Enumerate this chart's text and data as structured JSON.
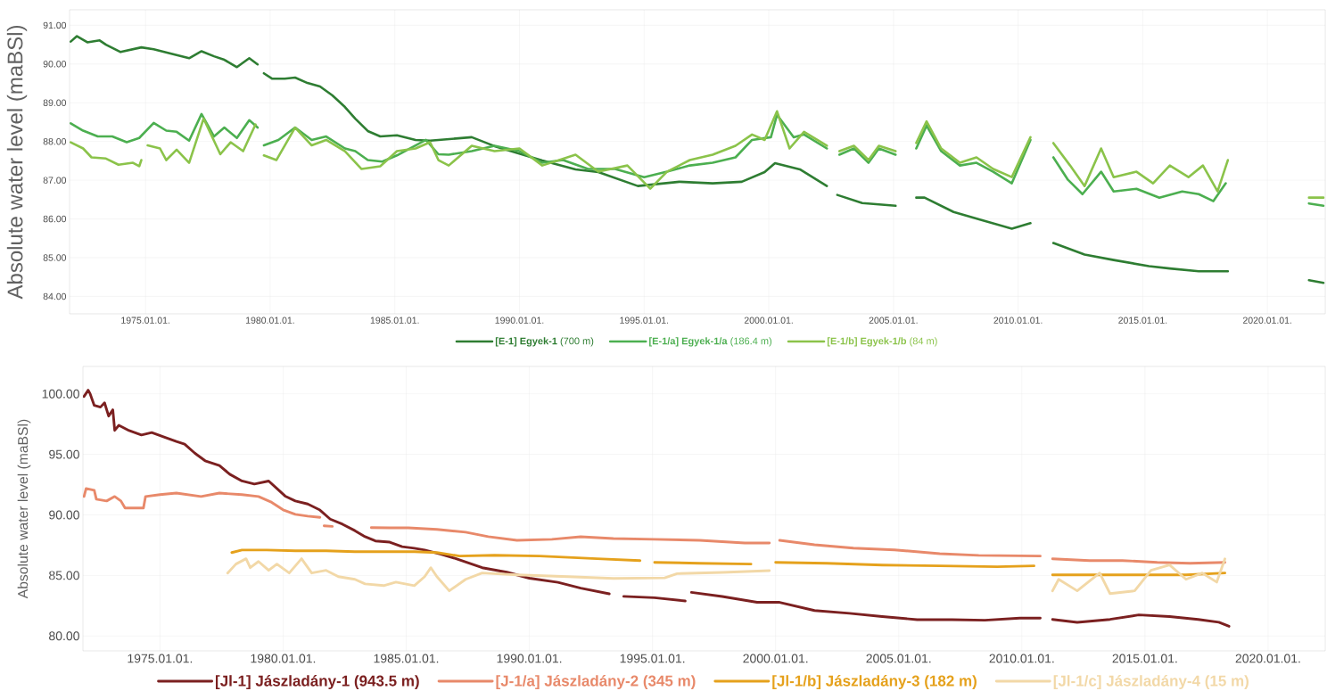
{
  "chart_data": [
    {
      "type": "line",
      "ylabel": "Absolute water level (maBSl)",
      "xlim": [
        "1971-12-15",
        "2022-04-28"
      ],
      "ylim": [
        83.55,
        91.4
      ],
      "xticks": [
        {
          "value": "1975-01-01",
          "label": "1975.01.01."
        },
        {
          "value": "1980-01-01",
          "label": "1980.01.01."
        },
        {
          "value": "1985-01-01",
          "label": "1985.01.01."
        },
        {
          "value": "1990-01-01",
          "label": "1990.01.01."
        },
        {
          "value": "1995-01-01",
          "label": "1995.01.01."
        },
        {
          "value": "2000-01-01",
          "label": "2000.01.01."
        },
        {
          "value": "2005-01-01",
          "label": "2005.01.01."
        },
        {
          "value": "2010-01-01",
          "label": "2010.01.01."
        },
        {
          "value": "2015-01-01",
          "label": "2015.01.01."
        },
        {
          "value": "2020-01-01",
          "label": "2020.01.01."
        }
      ],
      "yticks": [
        {
          "value": 84,
          "label": "84.00"
        },
        {
          "value": 85,
          "label": "85.00"
        },
        {
          "value": 86,
          "label": "86.00"
        },
        {
          "value": 87,
          "label": "87.00"
        },
        {
          "value": 88,
          "label": "88.00"
        },
        {
          "value": 89,
          "label": "89.00"
        },
        {
          "value": 90,
          "label": "90.00"
        },
        {
          "value": 91,
          "label": "91.00"
        }
      ],
      "grid": true,
      "legend": "bottom",
      "series": [
        {
          "name": "**[E-1] Egyek-1** (700 m)",
          "color": "#2e7d32",
          "x": [
            "1972-01",
            "1972-04",
            "1972-09",
            "1973-03",
            "1973-06",
            "1974-01",
            "1974-11",
            "1975-05",
            "1976-01",
            "1976-10",
            "1977-04",
            "1977-10",
            "1978-03",
            "1978-09",
            "1979-03",
            "1979-07",
            "1979-09",
            "1979-10",
            "1980-02",
            "1980-08",
            "1981-01",
            "1981-07",
            "1982-01",
            "1982-07",
            "1983-01",
            "1983-06",
            "1983-12",
            "1984-06",
            "1985-02",
            "1985-11",
            "1986-06",
            "1988-02",
            "1989-01",
            "1990-12",
            "1992-04",
            "1993-03",
            "1994-10",
            "1996-06",
            "1997-10",
            "1998-12",
            "1999-11",
            "2000-04",
            "2001-04",
            "2002-05",
            "2002-07",
            "2002-10",
            "2003-10",
            "2005-02",
            "2005-06",
            "2005-12",
            "2006-04",
            "2007-06",
            "2008-07",
            "2009-10",
            "2010-07",
            "2011-01",
            "2011-06",
            "2012-09",
            "2013-11",
            "2015-04",
            "2016-02",
            "2017-04",
            "2018-06",
            "2020-01",
            "2021-09",
            "2022-04"
          ],
          "values": [
            90.58,
            90.72,
            90.56,
            90.61,
            90.5,
            90.31,
            90.43,
            90.38,
            90.27,
            90.15,
            90.33,
            90.2,
            90.11,
            89.92,
            90.15,
            89.99,
            null,
            89.76,
            89.62,
            89.62,
            89.65,
            89.51,
            89.42,
            89.19,
            88.89,
            88.59,
            88.27,
            88.13,
            88.16,
            88.04,
            88.02,
            88.11,
            87.88,
            87.51,
            87.28,
            87.21,
            86.85,
            86.96,
            86.92,
            86.96,
            87.21,
            87.44,
            87.28,
            86.85,
            null,
            86.62,
            86.41,
            86.34,
            null,
            86.55,
            86.55,
            86.18,
            85.98,
            85.75,
            85.89,
            null,
            85.38,
            85.08,
            84.94,
            84.78,
            84.72,
            84.65,
            84.65,
            null,
            84.42,
            84.35
          ]
        },
        {
          "name": "**[E-1/a] Egyek-1/a** (186.4 m)",
          "color": "#4caf50",
          "x": [
            "1972-01",
            "1972-07",
            "1973-02",
            "1973-09",
            "1974-04",
            "1974-10",
            "1975-05",
            "1975-11",
            "1976-04",
            "1976-10",
            "1977-04",
            "1977-10",
            "1978-03",
            "1978-09",
            "1979-03",
            "1979-07",
            "1979-09",
            "1979-10",
            "1980-05",
            "1981-01",
            "1981-09",
            "1982-04",
            "1983-01",
            "1983-06",
            "1983-12",
            "1984-07",
            "1985-02",
            "1985-11",
            "1986-04",
            "1986-10",
            "1987-03",
            "1988-02",
            "1989-01",
            "1990-01",
            "1990-12",
            "1991-10",
            "1992-10",
            "1993-11",
            "1995-01",
            "1995-12",
            "1996-11",
            "1997-10",
            "1998-09",
            "1999-05",
            "2000-02",
            "2000-05",
            "2001-01",
            "2001-06",
            "2002-05",
            "2002-08",
            "2002-11",
            "2003-06",
            "2004-01",
            "2004-06",
            "2005-02",
            "2005-06",
            "2005-12",
            "2006-05",
            "2006-12",
            "2007-09",
            "2008-05",
            "2009-01",
            "2009-10",
            "2010-07",
            "2011-01",
            "2011-06",
            "2012-01",
            "2012-08",
            "2013-05",
            "2013-11",
            "2014-10",
            "2015-09",
            "2016-08",
            "2017-04",
            "2017-11",
            "2018-05",
            "2020-01",
            "2021-09",
            "2022-04"
          ],
          "values": [
            88.47,
            88.28,
            88.13,
            88.13,
            87.98,
            88.09,
            88.48,
            88.28,
            88.25,
            88.02,
            88.71,
            88.13,
            88.36,
            88.09,
            88.55,
            88.36,
            null,
            87.9,
            88.04,
            88.36,
            88.04,
            88.13,
            87.82,
            87.75,
            87.52,
            87.48,
            87.64,
            87.9,
            88.04,
            87.67,
            87.66,
            87.75,
            87.89,
            87.75,
            87.45,
            87.52,
            87.29,
            87.29,
            87.08,
            87.22,
            87.38,
            87.45,
            87.59,
            88.04,
            88.11,
            88.69,
            88.11,
            88.18,
            87.82,
            null,
            87.66,
            87.82,
            87.45,
            87.82,
            87.66,
            null,
            87.82,
            88.41,
            87.75,
            87.38,
            87.45,
            87.22,
            86.92,
            88.04,
            null,
            87.59,
            87.01,
            86.64,
            87.22,
            86.71,
            86.78,
            86.55,
            86.71,
            86.64,
            86.46,
            86.92,
            null,
            86.4,
            86.34
          ]
        },
        {
          "name": "**[E-1/b] Egyek-1/b** (84 m)",
          "color": "#8bc34a",
          "x": [
            "1972-01",
            "1972-07",
            "1972-11",
            "1973-06",
            "1973-12",
            "1974-07",
            "1974-10",
            "1974-11",
            "1975-01",
            "1975-02",
            "1975-08",
            "1975-11",
            "1976-04",
            "1976-10",
            "1977-05",
            "1978-01",
            "1978-06",
            "1978-12",
            "1979-06",
            "1979-09",
            "1979-10",
            "1980-04",
            "1981-01",
            "1981-09",
            "1982-04",
            "1983-01",
            "1983-09",
            "1984-06",
            "1985-02",
            "1985-11",
            "1986-06",
            "1986-10",
            "1987-03",
            "1988-02",
            "1989-01",
            "1990-01",
            "1990-12",
            "1992-04",
            "1993-03",
            "1994-05",
            "1995-04",
            "1995-12",
            "1996-11",
            "1997-10",
            "1998-09",
            "1999-05",
            "1999-11",
            "2000-05",
            "2000-11",
            "2001-06",
            "2002-05",
            "2002-08",
            "2002-11",
            "2003-06",
            "2004-01",
            "2004-06",
            "2005-02",
            "2005-06",
            "2005-12",
            "2006-05",
            "2006-12",
            "2007-09",
            "2008-05",
            "2009-01",
            "2009-10",
            "2010-07",
            "2011-01",
            "2011-06",
            "2012-02",
            "2012-09",
            "2013-05",
            "2013-11",
            "2014-10",
            "2015-06",
            "2016-02",
            "2016-11",
            "2017-06",
            "2018-01",
            "2018-06",
            "2020-01",
            "2021-09",
            "2022-04"
          ],
          "values": [
            87.98,
            87.82,
            87.59,
            87.56,
            87.4,
            87.45,
            87.36,
            87.52,
            null,
            87.9,
            87.82,
            87.52,
            87.79,
            87.45,
            88.59,
            87.67,
            87.98,
            87.75,
            88.44,
            null,
            87.64,
            87.52,
            88.36,
            87.9,
            88.04,
            87.75,
            87.29,
            87.36,
            87.75,
            87.82,
            87.98,
            87.52,
            87.38,
            87.89,
            87.75,
            87.82,
            87.38,
            87.66,
            87.22,
            87.38,
            86.78,
            87.22,
            87.52,
            87.66,
            87.89,
            88.18,
            88.04,
            88.78,
            87.82,
            88.25,
            87.89,
            null,
            87.75,
            87.89,
            87.52,
            87.89,
            87.75,
            null,
            87.96,
            88.52,
            87.82,
            87.45,
            87.59,
            87.29,
            87.08,
            88.11,
            null,
            87.96,
            87.38,
            86.85,
            87.82,
            87.08,
            87.22,
            86.92,
            87.38,
            87.08,
            87.38,
            86.71,
            87.52,
            null,
            86.55,
            86.55
          ]
        }
      ]
    },
    {
      "type": "line",
      "ylabel": "Absolute water level (maBSl)",
      "xlim": [
        "1971-11-15",
        "2022-04-28"
      ],
      "ylim": [
        78.77,
        102.26
      ],
      "xticks": [
        {
          "value": "1975-01-01",
          "label": "1975.01.01."
        },
        {
          "value": "1980-01-01",
          "label": "1980.01.01."
        },
        {
          "value": "1985-01-01",
          "label": "1985.01.01."
        },
        {
          "value": "1990-01-01",
          "label": "1990.01.01."
        },
        {
          "value": "1995-01-01",
          "label": "1995.01.01."
        },
        {
          "value": "2000-01-01",
          "label": "2000.01.01."
        },
        {
          "value": "2005-01-01",
          "label": "2005.01.01."
        },
        {
          "value": "2010-01-01",
          "label": "2010.01.01."
        },
        {
          "value": "2015-01-01",
          "label": "2015.01.01."
        },
        {
          "value": "2020-01-01",
          "label": "2020.01.01."
        }
      ],
      "yticks": [
        {
          "value": 80,
          "label": "80.00"
        },
        {
          "value": 85,
          "label": "85.00"
        },
        {
          "value": 90,
          "label": "90.00"
        },
        {
          "value": 95,
          "label": "95.00"
        },
        {
          "value": 100,
          "label": "100.00"
        }
      ],
      "grid": true,
      "legend": "bottom",
      "series": [
        {
          "name": "[Jl-1] Jászladány-1 (943.5 m)",
          "color": "#7b2020",
          "x": [
            "1971-12",
            "1972-02",
            "1972-03",
            "1972-05",
            "1972-08",
            "1972-10",
            "1972-12",
            "1973-02",
            "1973-03",
            "1973-05",
            "1973-10",
            "1974-04",
            "1974-09",
            "1975-03",
            "1975-09",
            "1976-01",
            "1976-06",
            "1976-11",
            "1977-06",
            "1977-11",
            "1978-05",
            "1978-11",
            "1979-06",
            "1979-10",
            "1980-02",
            "1980-07",
            "1981-01",
            "1981-07",
            "1981-12",
            "1982-06",
            "1982-12",
            "1983-05",
            "1983-10",
            "1984-05",
            "1984-11",
            "1985-05",
            "1985-10",
            "1986-06",
            "1987-01",
            "1988-02",
            "1989-02",
            "1990-01",
            "1991-03",
            "1992-02",
            "1993-04",
            "1993-07",
            "1993-11",
            "1995-02",
            "1996-05",
            "1996-06",
            "1996-08",
            "1997-11",
            "1999-04",
            "2000-03",
            "2001-08",
            "2003-01",
            "2004-05",
            "2005-10",
            "2007-03",
            "2008-07",
            "2009-12",
            "2010-10",
            "2011-01",
            "2011-04",
            "2012-04",
            "2013-08",
            "2014-10",
            "2016-01",
            "2017-03",
            "2018-01",
            "2018-06"
          ],
          "values": [
            99.78,
            100.3,
            100.0,
            99.04,
            98.9,
            99.26,
            98.16,
            98.68,
            96.98,
            97.4,
            96.96,
            96.6,
            96.8,
            96.44,
            96.07,
            95.85,
            95.1,
            94.47,
            94.08,
            93.36,
            92.8,
            92.55,
            92.8,
            92.18,
            91.55,
            91.15,
            90.9,
            90.4,
            89.65,
            89.23,
            88.7,
            88.2,
            87.85,
            87.75,
            87.38,
            87.25,
            87.1,
            86.75,
            86.4,
            85.64,
            85.27,
            84.77,
            84.43,
            83.95,
            83.48,
            null,
            83.27,
            83.16,
            82.89,
            null,
            83.6,
            83.26,
            82.78,
            82.78,
            82.1,
            81.87,
            81.6,
            81.35,
            81.35,
            81.3,
            81.48,
            81.48,
            null,
            81.37,
            81.13,
            81.37,
            81.74,
            81.6,
            81.37,
            81.14,
            80.8
          ]
        },
        {
          "name": "[J-1/a] Jászladány-2 (345 m)",
          "color": "#e8896a",
          "x": [
            "1971-12",
            "1972-01",
            "1972-05",
            "1972-06",
            "1972-11",
            "1973-03",
            "1973-06",
            "1973-08",
            "1974-01",
            "1974-05",
            "1974-06",
            "1975-01",
            "1975-09",
            "1976-09",
            "1977-06",
            "1978-05",
            "1979-01",
            "1979-07",
            "1980-01",
            "1980-07",
            "1981-01",
            "1981-07",
            "1981-08",
            "1981-09",
            "1982-01",
            "1982-06",
            "1983-08",
            "1984-05",
            "1985-02",
            "1985-10",
            "1986-04",
            "1987-06",
            "1988-05",
            "1989-07",
            "1990-12",
            "1992-02",
            "1993-06",
            "1995-02",
            "1996-12",
            "1998-10",
            "1999-10",
            "2000-01",
            "2000-03",
            "2001-08",
            "2003-03",
            "2004-11",
            "2006-09",
            "2008-04",
            "2010-10",
            "2011-01",
            "2011-04",
            "2012-10",
            "2014-02",
            "2015-07",
            "2016-11",
            "2018-04"
          ],
          "values": [
            91.52,
            92.18,
            92.03,
            91.3,
            91.15,
            91.52,
            91.15,
            90.57,
            90.57,
            90.57,
            91.52,
            91.67,
            91.8,
            91.52,
            91.8,
            91.67,
            91.52,
            91.08,
            90.42,
            90.05,
            89.9,
            89.8,
            null,
            89.1,
            89.05,
            null,
            88.95,
            88.93,
            88.93,
            88.86,
            88.8,
            88.57,
            88.2,
            87.9,
            87.98,
            88.2,
            88.05,
            87.98,
            87.9,
            87.68,
            87.68,
            null,
            87.9,
            87.53,
            87.26,
            87.11,
            86.8,
            86.66,
            86.6,
            null,
            86.37,
            86.23,
            86.23,
            86.08,
            86.01,
            86.08
          ]
        },
        {
          "name": "[Jl-1/b] Jászladány-3 (182 m)",
          "color": "#e5a11c",
          "x": [
            "1977-12",
            "1978-05",
            "1979-05",
            "1980-07",
            "1981-10",
            "1982-12",
            "1984-02",
            "1985-05",
            "1986-04",
            "1987-03",
            "1988-08",
            "1990-06",
            "1992-10",
            "1994-07",
            "1994-10",
            "1995-02",
            "1996-12",
            "1999-01",
            "1999-08",
            "2000-01",
            "2002-02",
            "2004-05",
            "2006-09",
            "2009-01",
            "2010-07",
            "2011-01",
            "2011-04",
            "2012-10",
            "2014-10",
            "2016-09",
            "2018-04"
          ],
          "values": [
            86.89,
            87.1,
            87.1,
            87.04,
            87.04,
            86.96,
            86.96,
            86.96,
            86.89,
            86.6,
            86.67,
            86.6,
            86.38,
            86.23,
            null,
            86.08,
            86.01,
            85.94,
            null,
            86.08,
            86.01,
            85.86,
            85.79,
            85.72,
            85.79,
            null,
            85.05,
            85.05,
            85.05,
            85.05,
            85.2
          ]
        },
        {
          "name": "[Jl-1/c] Jászladány-4 (15 m)",
          "color": "#f2d8a7",
          "x": [
            "1977-10",
            "1978-02",
            "1978-07",
            "1978-09",
            "1979-01",
            "1979-06",
            "1979-10",
            "1980-04",
            "1980-10",
            "1981-03",
            "1981-10",
            "1982-04",
            "1982-12",
            "1983-05",
            "1984-02",
            "1984-08",
            "1985-05",
            "1985-10",
            "1986-01",
            "1986-04",
            "1986-10",
            "1987-06",
            "1988-02",
            "1989-07",
            "1991-08",
            "1993-06",
            "1995-07",
            "1996-01",
            "1997-11",
            "1999-10",
            "2005-01",
            "2011-04",
            "2011-07",
            "2012-04",
            "2013-03",
            "2013-08",
            "2014-08",
            "2015-04",
            "2016-01",
            "2016-09",
            "2017-05",
            "2017-12",
            "2018-04"
          ],
          "values": [
            85.2,
            85.94,
            86.38,
            85.64,
            86.15,
            85.42,
            85.94,
            85.2,
            86.38,
            85.2,
            85.42,
            84.9,
            84.68,
            84.3,
            84.16,
            84.45,
            84.16,
            84.9,
            85.64,
            84.9,
            83.73,
            84.68,
            85.2,
            85.05,
            84.9,
            84.75,
            84.8,
            85.15,
            85.25,
            85.4,
            null,
            83.73,
            84.68,
            83.73,
            85.2,
            83.5,
            83.73,
            85.42,
            85.86,
            84.68,
            85.2,
            84.45,
            86.37
          ]
        }
      ]
    }
  ]
}
